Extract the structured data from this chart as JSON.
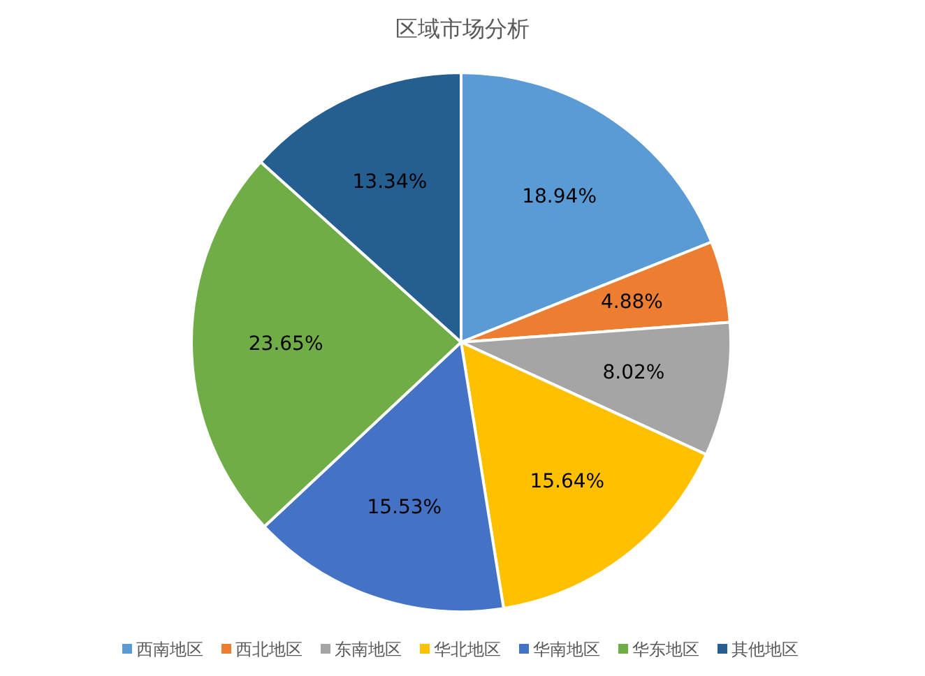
{
  "chart_data": {
    "type": "pie",
    "title": "区域市场分析",
    "categories": [
      "西南地区",
      "西北地区",
      "东南地区",
      "华北地区",
      "华南地区",
      "华东地区",
      "其他地区"
    ],
    "values": [
      18.94,
      4.88,
      8.02,
      15.64,
      15.53,
      23.65,
      13.34
    ],
    "colors": [
      "#5b9bd5",
      "#ed7d31",
      "#a5a5a5",
      "#ffc000",
      "#4472c4",
      "#70ad47",
      "#255e91"
    ],
    "value_labels": [
      "18.94%",
      "4.88%",
      "8.02%",
      "15.64%",
      "15.53%",
      "23.65%",
      "13.34%"
    ],
    "legend": "bottom"
  }
}
